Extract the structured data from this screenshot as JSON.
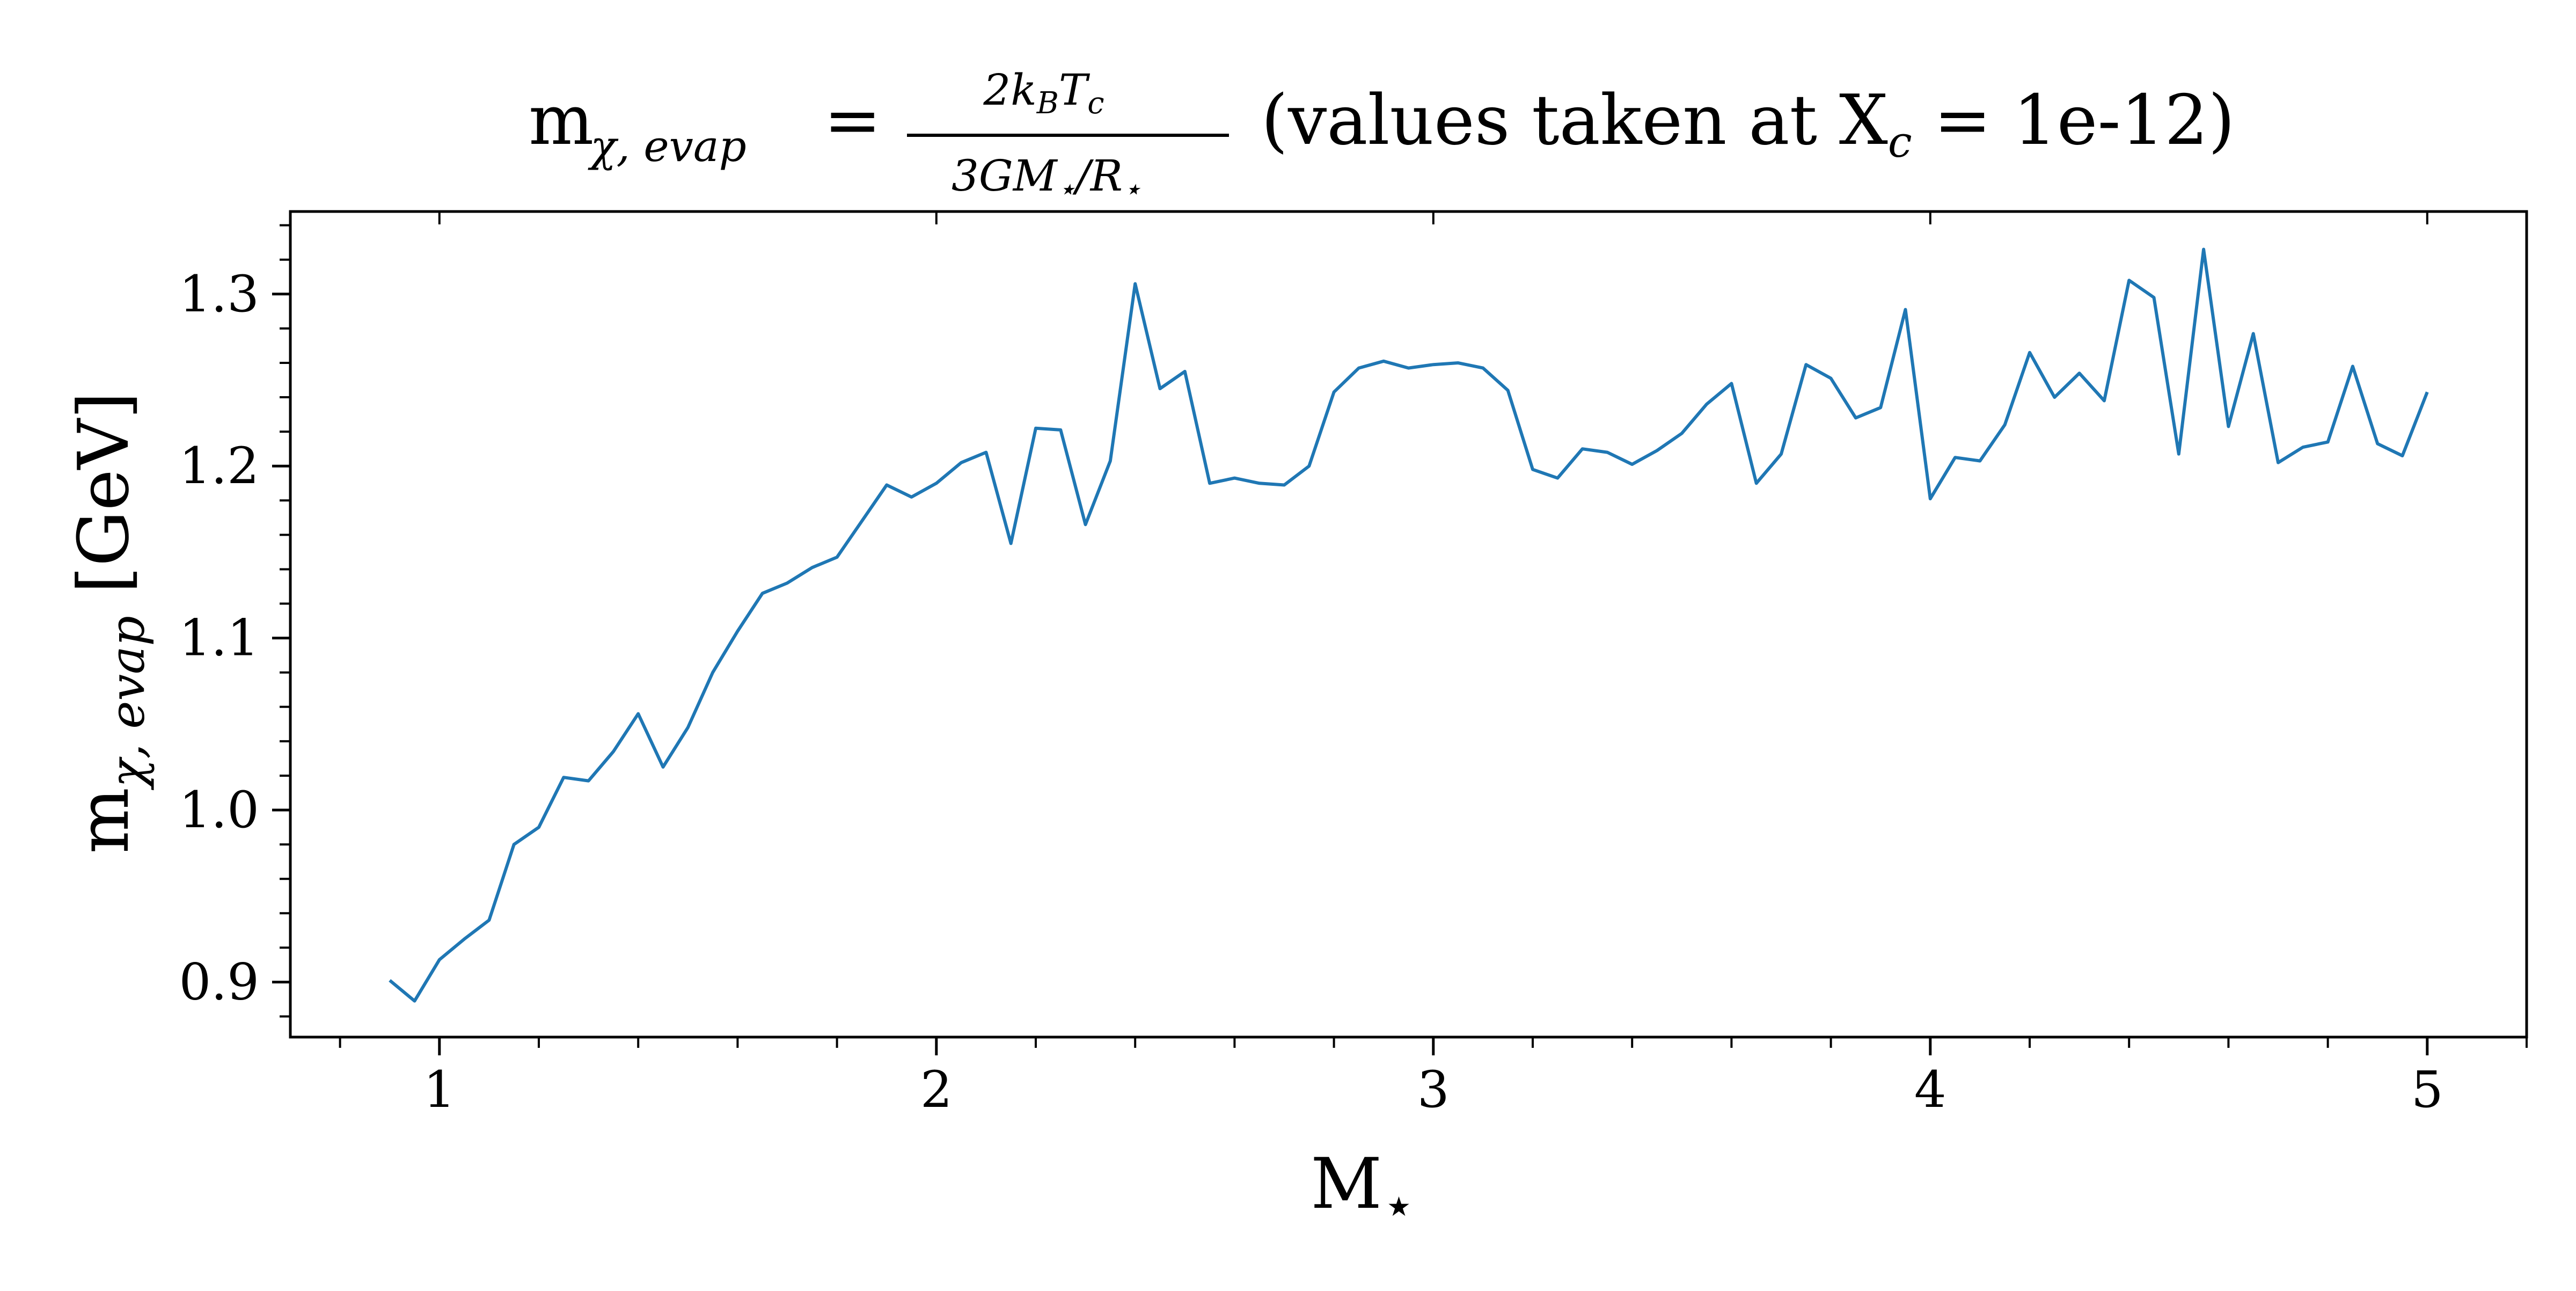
{
  "chart_data": {
    "type": "line",
    "title": {
      "lhs_main": "m",
      "lhs_sub": "χ, evap",
      "equals": "=",
      "numerator": "2k_BT_c",
      "denominator": "3GM⋆/R⋆",
      "suffix": "(values taken at X",
      "suffix_sub": "c",
      "suffix_end": " = 1e-12)"
    },
    "xlabel": {
      "main": "M",
      "sub": "⋆"
    },
    "ylabel": {
      "main": "m",
      "sub": "χ, evap",
      "unit": " [GeV]"
    },
    "xlim": [
      0.7,
      5.2
    ],
    "ylim": [
      0.868,
      1.348
    ],
    "x_ticks": [
      1,
      2,
      3,
      4,
      5
    ],
    "x_tick_labels": [
      "1",
      "2",
      "3",
      "4",
      "5"
    ],
    "y_ticks": [
      0.9,
      1.0,
      1.1,
      1.2,
      1.3
    ],
    "y_tick_labels": [
      "0.9",
      "1.0",
      "1.1",
      "1.2",
      "1.3"
    ],
    "grid": false,
    "line_color": "#1f77b4",
    "series": [
      {
        "x": [
          0.9,
          0.95,
          1.0,
          1.05,
          1.1,
          1.15,
          1.2,
          1.25,
          1.3,
          1.35,
          1.4,
          1.45,
          1.5,
          1.55,
          1.6,
          1.65,
          1.7,
          1.75,
          1.8,
          1.85,
          1.9,
          1.95,
          2.0,
          2.05,
          2.1,
          2.15,
          2.2,
          2.25,
          2.3,
          2.35,
          2.4,
          2.45,
          2.5,
          2.55,
          2.6,
          2.65,
          2.7,
          2.75,
          2.8,
          2.85,
          2.9,
          2.95,
          3.0,
          3.05,
          3.1,
          3.15,
          3.2,
          3.25,
          3.3,
          3.35,
          3.4,
          3.45,
          3.5,
          3.55,
          3.6,
          3.65,
          3.7,
          3.75,
          3.8,
          3.85,
          3.9,
          3.95,
          4.0,
          4.05,
          4.1,
          4.15,
          4.2,
          4.25,
          4.3,
          4.35,
          4.4,
          4.45,
          4.5,
          4.55,
          4.6,
          4.65,
          4.7,
          4.75,
          4.8,
          4.85,
          4.9,
          4.95,
          5.0
        ],
        "y": [
          0.901,
          0.889,
          0.913,
          0.925,
          0.936,
          0.98,
          0.99,
          1.019,
          1.017,
          1.034,
          1.056,
          1.025,
          1.048,
          1.08,
          1.104,
          1.126,
          1.132,
          1.141,
          1.147,
          1.168,
          1.189,
          1.182,
          1.19,
          1.202,
          1.208,
          1.155,
          1.222,
          1.221,
          1.166,
          1.203,
          1.306,
          1.245,
          1.255,
          1.19,
          1.193,
          1.19,
          1.189,
          1.2,
          1.243,
          1.257,
          1.261,
          1.257,
          1.259,
          1.26,
          1.257,
          1.244,
          1.198,
          1.193,
          1.21,
          1.208,
          1.201,
          1.209,
          1.219,
          1.236,
          1.248,
          1.19,
          1.207,
          1.259,
          1.251,
          1.228,
          1.234,
          1.291,
          1.181,
          1.205,
          1.203,
          1.224,
          1.266,
          1.24,
          1.254,
          1.238,
          1.308,
          1.298,
          1.207,
          1.326,
          1.223,
          1.277,
          1.202,
          1.211,
          1.214,
          1.258,
          1.213,
          1.206,
          1.243
        ]
      }
    ]
  }
}
